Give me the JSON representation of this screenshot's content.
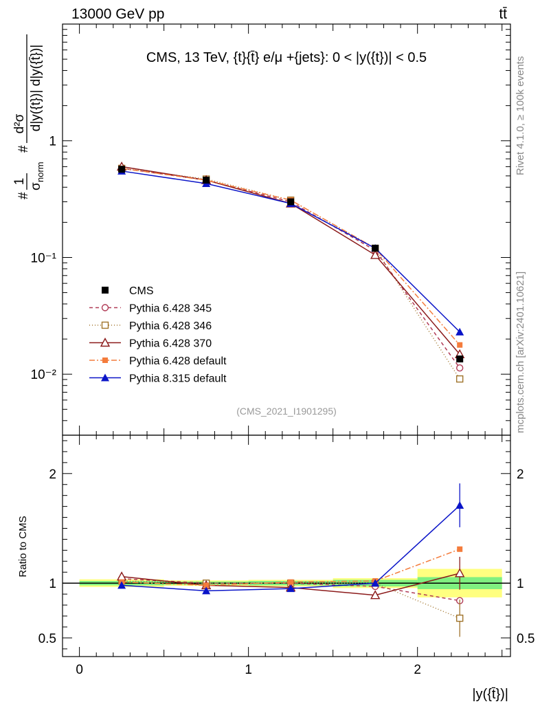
{
  "header": {
    "left": "13000 GeV pp",
    "right": "tt̄",
    "title": "CMS, 13 TeV, {t}{t̄} e/μ +{jets}: 0 < |y({t})| < 0.5",
    "analysis_id": "(CMS_2021_I1901295)",
    "side_rivet": "Rivet 4.1.0, ≥ 100k events",
    "side_site": "mcplots.cern.ch [arXiv:2401.10621]"
  },
  "chart_data": {
    "type": "line",
    "xlabel": "|y({t̄})|",
    "ylabel": "#1/σ_norm #d²σ/d|y({t})| d|y({t̄})|",
    "ylabel_parts": {
      "one": "1",
      "sigma": "σ",
      "norm": "norm",
      "d2s": "d²σ",
      "den1": "d|y({t})| d|y({t̄})|"
    },
    "ratio_ylabel": "Ratio to CMS",
    "xlim": [
      -0.1,
      2.55
    ],
    "ylim_main": [
      0.003,
      10
    ],
    "ylim_ratio": [
      0.33,
      2.35
    ],
    "yscale_main": "log",
    "x_ticks": [
      0,
      1,
      2
    ],
    "x_tick_labels": [
      "0",
      "1",
      "2"
    ],
    "y_main_tick_labels": [
      "1",
      "10⁻¹",
      "10⁻²"
    ],
    "y_ratio_ticks": [
      2,
      1,
      0.5
    ],
    "y_ratio_tick_labels": [
      "2",
      "1",
      "0.5"
    ],
    "x": [
      0.25,
      0.75,
      1.25,
      1.75,
      2.25
    ],
    "bin_edges": [
      0,
      0.5,
      1.0,
      1.5,
      2.0,
      2.5
    ],
    "data": {
      "name": "CMS",
      "values": [
        0.57,
        0.46,
        0.3,
        0.12,
        0.0135
      ],
      "band_inner": [
        0.02,
        0.015,
        0.02,
        0.03,
        0.055
      ],
      "band_outer": [
        0.035,
        0.025,
        0.03,
        0.045,
        0.13
      ]
    },
    "series": [
      {
        "name": "Pythia 6.428 345",
        "color": "#b03a55",
        "dash": "5,4",
        "marker": "circle-open",
        "values": [
          0.58,
          0.46,
          0.3,
          0.115,
          0.0113
        ],
        "ratio": [
          1.04,
          1.0,
          1.0,
          0.97,
          0.84
        ],
        "ratio_err": [
          0,
          0,
          0,
          0,
          0
        ]
      },
      {
        "name": "Pythia 6.428 346",
        "color": "#a0742b",
        "dash": "1,3",
        "marker": "square-open",
        "values": [
          0.58,
          0.47,
          0.31,
          0.12,
          0.0091
        ],
        "ratio": [
          1.02,
          1.0,
          1.0,
          1.0,
          0.68
        ],
        "ratio_err": [
          0,
          0,
          0,
          0,
          0.17
        ]
      },
      {
        "name": "Pythia 6.428 370",
        "color": "#8b1a1a",
        "dash": "",
        "marker": "triangle-open",
        "values": [
          0.6,
          0.46,
          0.29,
          0.105,
          0.0148
        ],
        "ratio": [
          1.06,
          0.98,
          0.96,
          0.89,
          1.09
        ],
        "ratio_err": [
          0.02,
          0.02,
          0.02,
          0.03,
          0.15
        ]
      },
      {
        "name": "Pythia 6.428 default",
        "color": "#f47c3c",
        "dash": "8,3,2,3",
        "marker": "square-filled",
        "values": [
          0.58,
          0.46,
          0.31,
          0.12,
          0.0178
        ],
        "ratio": [
          1.01,
          0.98,
          1.01,
          1.02,
          1.31
        ],
        "ratio_err": [
          0,
          0,
          0,
          0,
          0
        ]
      },
      {
        "name": "Pythia 8.315 default",
        "color": "#0a14c8",
        "dash": "",
        "marker": "triangle-filled",
        "values": [
          0.55,
          0.43,
          0.29,
          0.12,
          0.023
        ],
        "ratio": [
          0.98,
          0.93,
          0.95,
          1.0,
          1.71
        ],
        "ratio_err": [
          0.02,
          0.02,
          0.02,
          0.03,
          0.2
        ]
      }
    ]
  }
}
